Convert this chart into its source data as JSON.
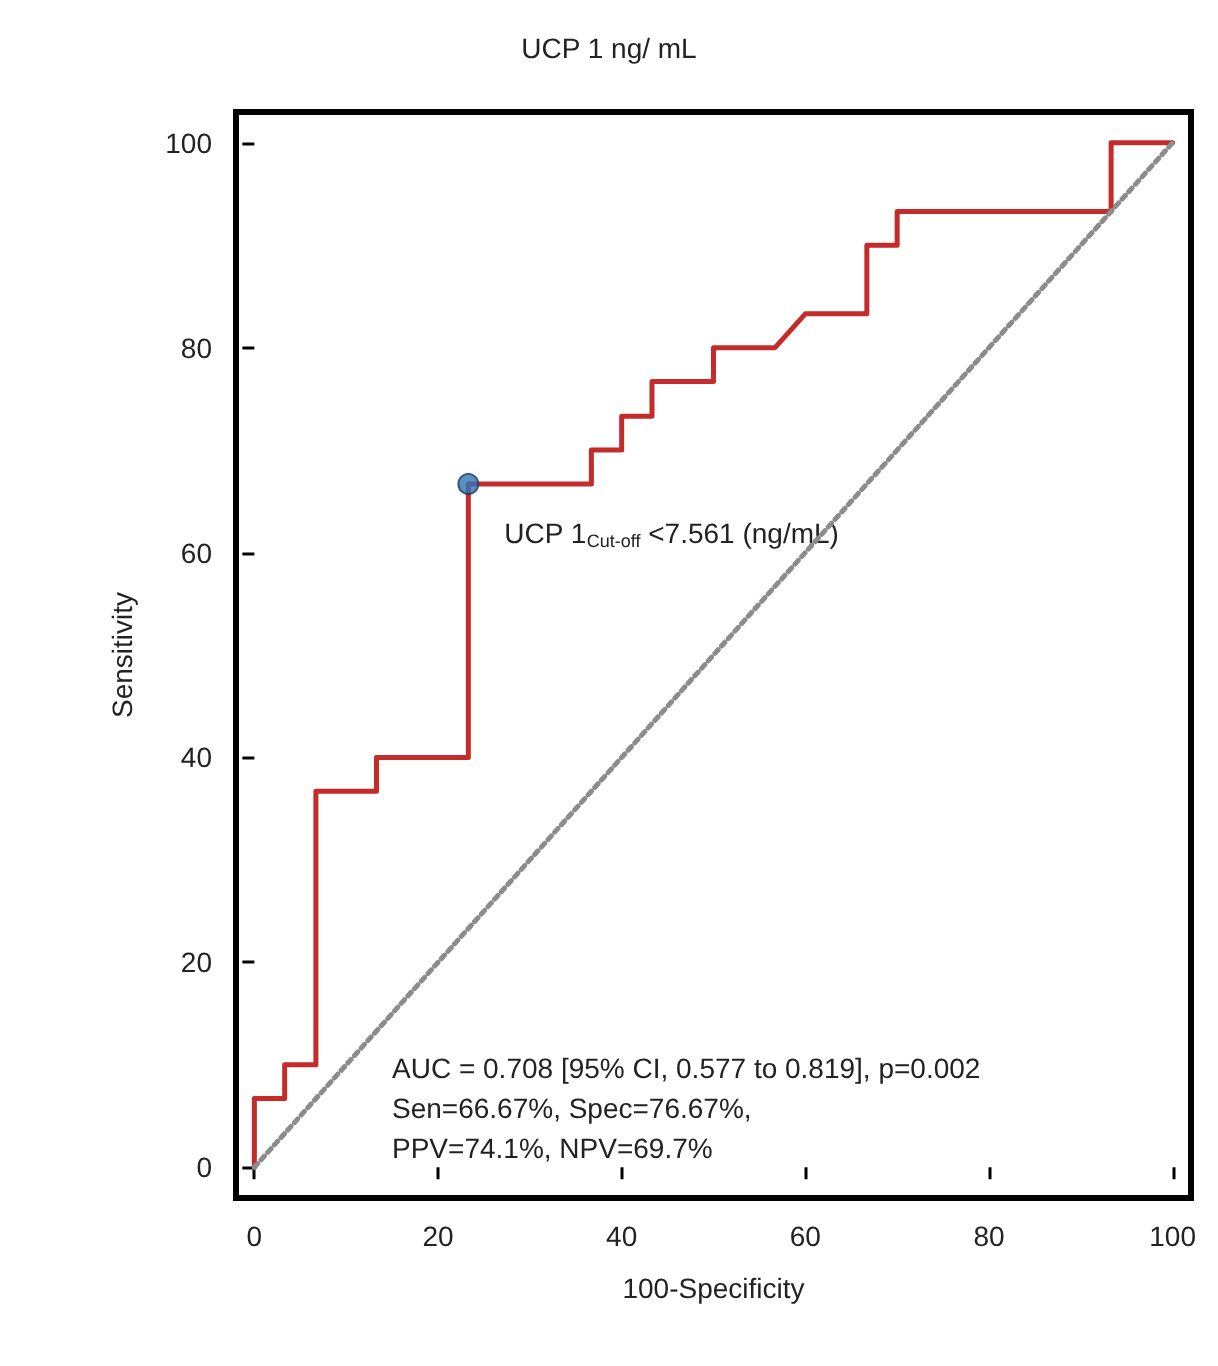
{
  "chart_data": {
    "type": "line",
    "title": "UCP 1 ng/ mL",
    "xlabel": "100-Specificity",
    "ylabel": "Sensitivity",
    "xlim": [
      -2,
      102
    ],
    "ylim": [
      -3,
      103
    ],
    "xticks": [
      0,
      20,
      40,
      60,
      80,
      100
    ],
    "yticks": [
      0,
      20,
      40,
      60,
      80,
      100
    ],
    "grid": false,
    "series": [
      {
        "color": "#c42b2b",
        "marker": "none",
        "line_style": "solid",
        "x": [
          0,
          0,
          3.3,
          3.3,
          6.7,
          6.7,
          13.3,
          13.3,
          23.3,
          23.3,
          36.7,
          36.7,
          40,
          40,
          43.3,
          43.3,
          50,
          50,
          56.7,
          60,
          66.7,
          66.7,
          70,
          70,
          93.3,
          93.3,
          100
        ],
        "values": [
          0,
          6.7,
          6.7,
          10,
          10,
          36.7,
          36.7,
          40,
          40,
          66.7,
          66.7,
          70,
          70,
          73.3,
          73.3,
          76.7,
          76.7,
          80,
          80,
          83.3,
          83.3,
          90,
          90,
          93.3,
          93.3,
          100,
          100
        ]
      },
      {
        "color": "#8c8c8c",
        "marker": "none",
        "line_style": "dotted",
        "x": [
          0,
          100
        ],
        "values": [
          0,
          100
        ]
      },
      {
        "type": "scatter",
        "color": "#2e75b6",
        "marker": "circle",
        "x": [
          23.3
        ],
        "values": [
          66.7
        ]
      }
    ],
    "annotations": [
      {
        "text": "UCP 1$_{Cut-off}$ <7.561 (ng/mL)",
        "x": 23.3,
        "y": 66.7
      },
      "AUC = 0.708 [95% CI, 0.577 to 0.819], p=0.002",
      "Sen=66.67%, Spec=76.67%,",
      "PPV=74.1%, NPV=69.7%"
    ]
  }
}
